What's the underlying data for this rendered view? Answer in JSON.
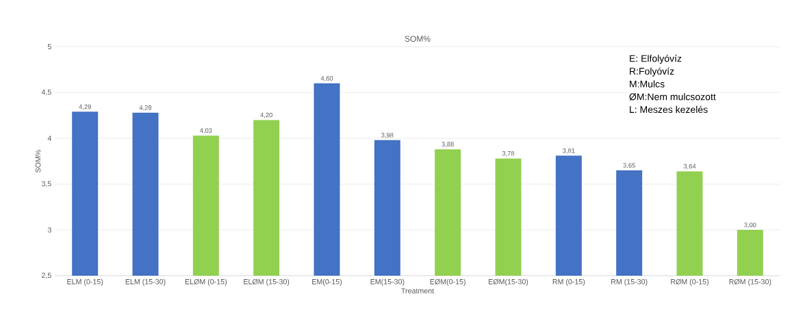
{
  "chart_data": {
    "type": "bar",
    "title": "SOM%",
    "xlabel": "Treatment",
    "ylabel": "SOM%",
    "categories": [
      "ELM (0-15)",
      "ELM (15-30)",
      "ELØM (0-15)",
      "ELØM (15-30)",
      "EM(0-15)",
      "EM(15-30)",
      "EØM(0-15)",
      "EØM(15-30)",
      "RM (0-15)",
      "RM (15-30)",
      "RØM (0-15)",
      "RØM (15-30)"
    ],
    "values": [
      4.29,
      4.28,
      4.03,
      4.2,
      4.6,
      3.98,
      3.88,
      3.78,
      3.81,
      3.65,
      3.64,
      3.0
    ],
    "value_labels": [
      "4,29",
      "4,28",
      "4,03",
      "4,20",
      "4,60",
      "3,98",
      "3,88",
      "3,78",
      "3,81",
      "3,65",
      "3,64",
      "3,00"
    ],
    "colors": [
      "#4472c4",
      "#4472c4",
      "#92d050",
      "#92d050",
      "#4472c4",
      "#4472c4",
      "#92d050",
      "#92d050",
      "#4472c4",
      "#4472c4",
      "#92d050",
      "#92d050"
    ],
    "ylim": [
      2.5,
      5
    ],
    "yticks": [
      {
        "value": 2.5,
        "label": "2,5"
      },
      3,
      {
        "value": 3.5,
        "label": "3,5"
      },
      4,
      {
        "value": 4.5,
        "label": "4,5"
      },
      5
    ],
    "grid": "y",
    "annotations": [
      "E: Elfolyóvíz",
      "R:Folyóvíz",
      "M:Mulcs",
      "ØM:Nem mulcsozott",
      "L: Meszes kezelés"
    ]
  }
}
